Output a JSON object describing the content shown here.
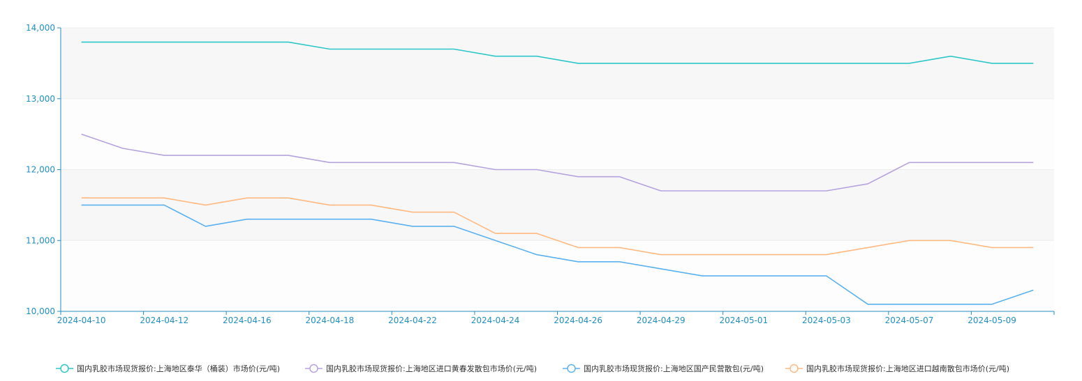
{
  "chart_data": {
    "type": "line",
    "title": "",
    "xlabel": "",
    "ylabel": "",
    "ylim": [
      10000,
      14000
    ],
    "yticks": [
      "10,000",
      "11,000",
      "12,000",
      "13,000",
      "14,000"
    ],
    "ytick_values": [
      10000,
      11000,
      12000,
      13000,
      14000
    ],
    "x": [
      "2024-04-10",
      "2024-04-11",
      "2024-04-12",
      "2024-04-15",
      "2024-04-16",
      "2024-04-17",
      "2024-04-18",
      "2024-04-19",
      "2024-04-22",
      "2024-04-23",
      "2024-04-24",
      "2024-04-25",
      "2024-04-26",
      "2024-04-28",
      "2024-04-29",
      "2024-04-30",
      "2024-05-01",
      "2024-05-02",
      "2024-05-03",
      "2024-05-06",
      "2024-05-07",
      "2024-05-08",
      "2024-05-09",
      "2024-05-10"
    ],
    "xtick_labels": [
      "2024-04-10",
      "2024-04-12",
      "2024-04-16",
      "2024-04-18",
      "2024-04-22",
      "2024-04-24",
      "2024-04-26",
      "2024-04-29",
      "2024-05-01",
      "2024-05-03",
      "2024-05-07",
      "2024-05-09"
    ],
    "grid": true,
    "legend_position": "bottom",
    "series": [
      {
        "name": "国内乳胶市场现货报价:上海地区泰华（桶装）市场价(元/吨)",
        "color": "#2ec7c9",
        "values": [
          13800,
          13800,
          13800,
          13800,
          13800,
          13800,
          13700,
          13700,
          13700,
          13700,
          13600,
          13600,
          13500,
          13500,
          13500,
          13500,
          13500,
          13500,
          13500,
          13500,
          13500,
          13600,
          13500,
          13500
        ]
      },
      {
        "name": "国内乳胶市场现货报价:上海地区进口黄春发散包市场价(元/吨)",
        "color": "#b6a2de",
        "values": [
          12500,
          12300,
          12200,
          12200,
          12200,
          12200,
          12100,
          12100,
          12100,
          12100,
          12000,
          12000,
          11900,
          11900,
          11700,
          11700,
          11700,
          11700,
          11700,
          11800,
          12100,
          12100,
          12100,
          12100
        ]
      },
      {
        "name": "国内乳胶市场现货报价:上海地区国产民营散包(元/吨)",
        "color": "#5ab1ef",
        "values": [
          11500,
          11500,
          11500,
          11200,
          11300,
          11300,
          11300,
          11300,
          11200,
          11200,
          11000,
          10800,
          10700,
          10700,
          10600,
          10500,
          10500,
          10500,
          10500,
          10100,
          10100,
          10100,
          10100,
          10300
        ]
      },
      {
        "name": "国内乳胶市场现货报价:上海地区进口越南散包市场价(元/吨)",
        "color": "#ffb980",
        "values": [
          11600,
          11600,
          11600,
          11500,
          11600,
          11600,
          11500,
          11500,
          11400,
          11400,
          11100,
          11100,
          10900,
          10900,
          10800,
          10800,
          10800,
          10800,
          10800,
          10900,
          11000,
          11000,
          10900,
          10900
        ]
      }
    ]
  }
}
